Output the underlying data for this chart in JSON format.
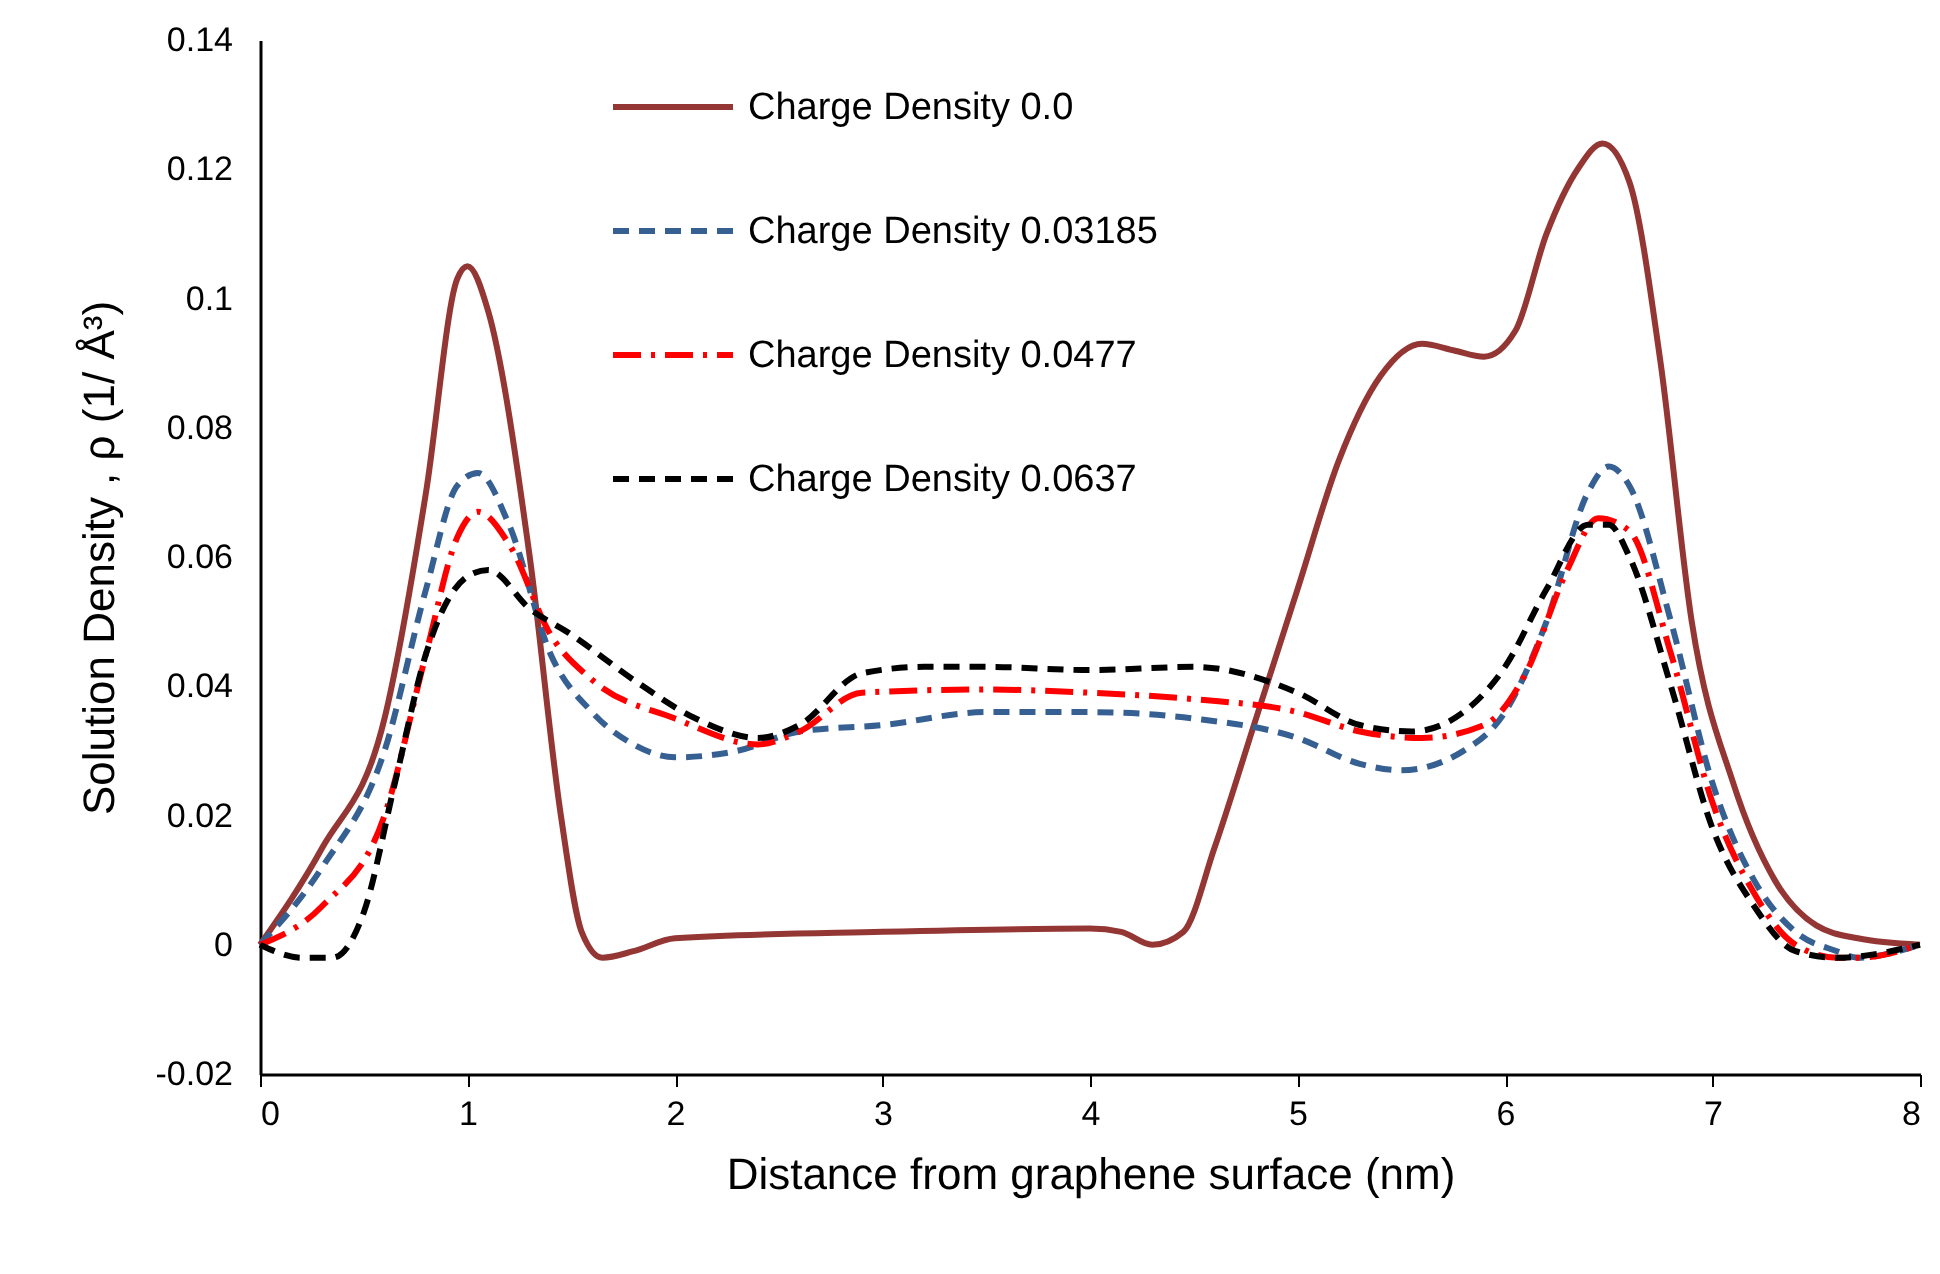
{
  "chart_data": {
    "type": "line",
    "xlabel": "Distance from graphene surface (nm)",
    "ylabel": "Solution Density , ρ (1/ Å³)",
    "xlim": [
      0,
      8
    ],
    "xticks": [
      0,
      1,
      2,
      3,
      4,
      5,
      6,
      7,
      8
    ],
    "ylim": [
      -0.02,
      0.14
    ],
    "yticks": [
      -0.02,
      0,
      0.02,
      0.04,
      0.06,
      0.08,
      0.1,
      0.12,
      0.14
    ],
    "grid": false,
    "legend": "top",
    "marker": "none",
    "series": [
      {
        "name": "Charge Density 0.0",
        "color": "#943634",
        "line_style": "solid",
        "x": [
          0,
          0.3,
          0.6,
          0.8,
          0.95,
          1.0,
          1.1,
          1.3,
          1.45,
          1.55,
          1.65,
          1.8,
          2.0,
          3.0,
          4.0,
          4.15,
          4.3,
          4.45,
          4.6,
          4.8,
          5.0,
          5.2,
          5.4,
          5.6,
          5.75,
          5.9,
          6.05,
          6.2,
          6.35,
          6.47,
          6.6,
          6.75,
          6.9,
          7.1,
          7.3,
          7.5,
          7.7,
          8.0
        ],
        "values": [
          0,
          0.015,
          0.035,
          0.07,
          0.103,
          0.105,
          0.098,
          0.06,
          0.02,
          0.002,
          -0.002,
          -0.001,
          0.001,
          0.002,
          0.0025,
          0.002,
          0,
          0.002,
          0.015,
          0.035,
          0.055,
          0.075,
          0.088,
          0.093,
          0.092,
          0.091,
          0.095,
          0.11,
          0.12,
          0.124,
          0.118,
          0.09,
          0.05,
          0.025,
          0.01,
          0.003,
          0.001,
          0
        ]
      },
      {
        "name": "Charge Density 0.03185",
        "color": "#376092",
        "line_style": "dashed",
        "x": [
          0,
          0.3,
          0.6,
          0.8,
          0.95,
          1.05,
          1.2,
          1.4,
          1.6,
          1.8,
          2.0,
          2.3,
          2.6,
          3.0,
          3.5,
          4.0,
          4.5,
          5.0,
          5.3,
          5.5,
          5.8,
          6.0,
          6.2,
          6.4,
          6.5,
          6.6,
          6.8,
          7.0,
          7.2,
          7.4,
          7.6,
          7.7,
          8.0
        ],
        "values": [
          0,
          0.012,
          0.03,
          0.055,
          0.071,
          0.073,
          0.065,
          0.045,
          0.036,
          0.031,
          0.029,
          0.03,
          0.033,
          0.034,
          0.036,
          0.036,
          0.035,
          0.032,
          0.028,
          0.027,
          0.03,
          0.036,
          0.05,
          0.07,
          0.074,
          0.071,
          0.05,
          0.025,
          0.01,
          0.002,
          -0.001,
          -0.002,
          0
        ]
      },
      {
        "name": "Charge Density 0.0477",
        "color": "#ff0000",
        "line_style": "dashdot",
        "x": [
          0,
          0.3,
          0.6,
          0.8,
          0.95,
          1.05,
          1.2,
          1.4,
          1.6,
          2.0,
          2.4,
          2.6,
          2.9,
          3.5,
          4.0,
          4.5,
          5.0,
          5.3,
          5.6,
          5.9,
          6.1,
          6.3,
          6.45,
          6.6,
          6.8,
          7.0,
          7.2,
          7.4,
          7.6,
          7.7,
          8.0
        ],
        "values": [
          0,
          0.006,
          0.02,
          0.045,
          0.063,
          0.067,
          0.062,
          0.048,
          0.041,
          0.035,
          0.031,
          0.033,
          0.039,
          0.0395,
          0.039,
          0.038,
          0.036,
          0.033,
          0.032,
          0.034,
          0.042,
          0.058,
          0.066,
          0.064,
          0.045,
          0.022,
          0.008,
          0,
          -0.002,
          -0.002,
          0
        ]
      },
      {
        "name": "Charge Density 0.0637",
        "color": "#000000",
        "line_style": "dashed",
        "x": [
          0,
          0.2,
          0.35,
          0.5,
          0.65,
          0.8,
          1.0,
          1.1,
          1.3,
          1.5,
          1.8,
          2.1,
          2.4,
          2.6,
          2.9,
          3.2,
          3.5,
          4.0,
          4.5,
          5.0,
          5.3,
          5.55,
          5.8,
          6.0,
          6.2,
          6.4,
          6.5,
          6.6,
          6.8,
          7.0,
          7.2,
          7.4,
          7.6,
          8.0
        ],
        "values": [
          0,
          -0.002,
          -0.002,
          0.005,
          0.025,
          0.045,
          0.057,
          0.058,
          0.052,
          0.048,
          0.041,
          0.035,
          0.032,
          0.034,
          0.042,
          0.043,
          0.043,
          0.0425,
          0.043,
          0.039,
          0.034,
          0.033,
          0.036,
          0.043,
          0.055,
          0.065,
          0.065,
          0.06,
          0.04,
          0.018,
          0.006,
          -0.001,
          -0.002,
          0
        ]
      }
    ]
  }
}
